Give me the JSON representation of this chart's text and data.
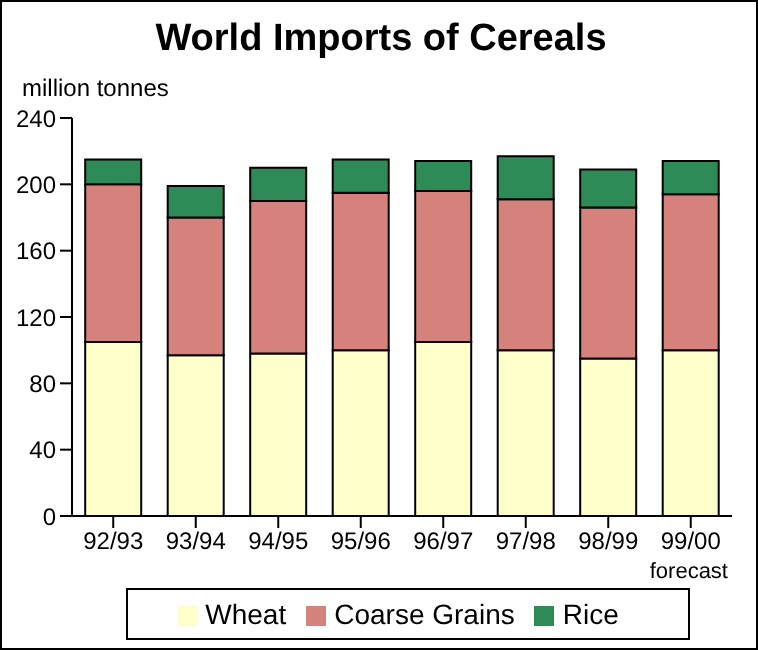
{
  "chart_data": {
    "type": "bar",
    "title": "World Imports of Cereals",
    "ylabel": "million tonnes",
    "categories": [
      "92/93",
      "93/94",
      "94/95",
      "95/96",
      "96/97",
      "97/98",
      "98/99",
      "99/00"
    ],
    "series": [
      {
        "name": "Wheat",
        "color": "#ffffcc",
        "values": [
          105,
          97,
          98,
          100,
          105,
          100,
          95,
          100
        ]
      },
      {
        "name": "Coarse Grains",
        "color": "#d4827b",
        "values": [
          95,
          83,
          92,
          95,
          91,
          91,
          91,
          94
        ]
      },
      {
        "name": "Rice",
        "color": "#2e8b57",
        "values": [
          15,
          19,
          20,
          20,
          18,
          26,
          23,
          20
        ]
      }
    ],
    "stacked": true,
    "ylim": [
      0,
      240
    ],
    "yticks": [
      0,
      40,
      80,
      120,
      160,
      200,
      240
    ],
    "legend": "bottom",
    "annotations": [
      "forecast"
    ]
  }
}
